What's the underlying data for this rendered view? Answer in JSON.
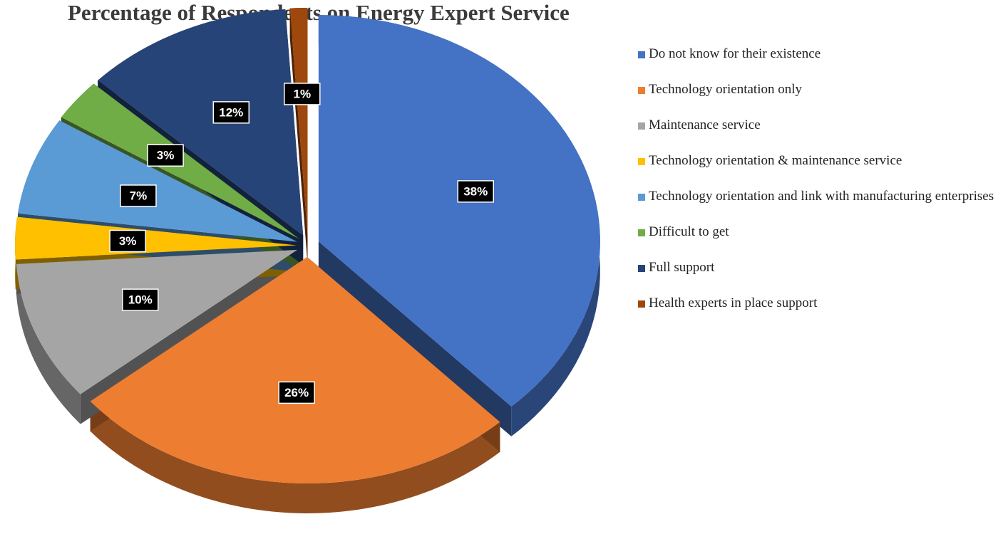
{
  "chart_data": {
    "type": "pie",
    "title": "Percentage of Respondents on Energy Expert Service",
    "categories": [
      "Do not know for their existence",
      "Technology orientation only",
      "Maintenance service",
      "Technology orientation & maintenance service",
      "Technology orientation and link with manufacturing enterprises",
      "Difficult to get",
      "Full support",
      "Health experts in place support"
    ],
    "values": [
      38,
      26,
      10,
      3,
      7,
      3,
      12,
      1
    ],
    "value_labels": [
      "38%",
      "26%",
      "10%",
      "3%",
      "7%",
      "3%",
      "12%",
      "1%"
    ],
    "colors": [
      "#4472c4",
      "#ed7d31",
      "#a5a5a5",
      "#ffc000",
      "#5b9bd5",
      "#70ad47",
      "#264478",
      "#9e480e"
    ],
    "legend": "right"
  }
}
